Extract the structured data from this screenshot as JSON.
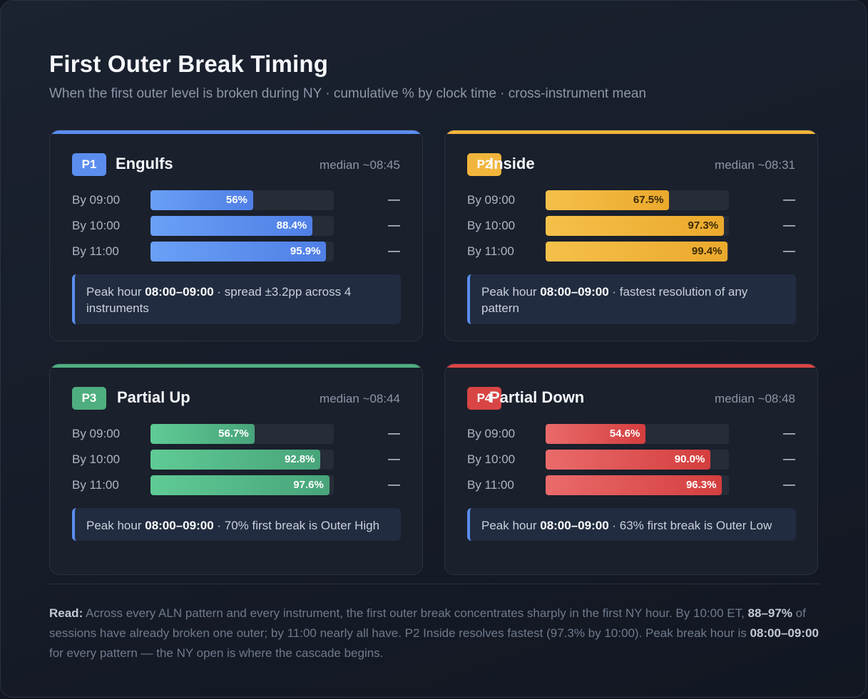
{
  "header": {
    "title": "First Outer Break Timing",
    "subtitle": "When the first outer level is broken during NY · cumulative % by clock time · cross-instrument mean"
  },
  "chart_data": [
    {
      "type": "bar",
      "badge": "P1",
      "title": "Engulfs",
      "median": "median ~08:45",
      "color": "#5b8def",
      "categories": [
        "By 09:00",
        "By 10:00",
        "By 11:00"
      ],
      "values": [
        56,
        88.4,
        95.9
      ],
      "value_labels": [
        "56%",
        "88.4%",
        "95.9%"
      ],
      "trend": [
        "—",
        "—",
        "—"
      ],
      "ylim": [
        0,
        100
      ],
      "note": {
        "pre": "Peak hour ",
        "bold": "08:00–09:00",
        "post": " · spread ±3.2pp across 4 instruments"
      }
    },
    {
      "type": "bar",
      "badge": "P2",
      "title": "Inside",
      "median": "median ~08:31",
      "color": "#f2b53c",
      "categories": [
        "By 09:00",
        "By 10:00",
        "By 11:00"
      ],
      "values": [
        67.5,
        97.3,
        99.4
      ],
      "value_labels": [
        "67.5%",
        "97.3%",
        "99.4%"
      ],
      "trend": [
        "—",
        "—",
        "—"
      ],
      "ylim": [
        0,
        100
      ],
      "note": {
        "pre": "Peak hour ",
        "bold": "08:00–09:00",
        "post": " · fastest resolution of any pattern"
      }
    },
    {
      "type": "bar",
      "badge": "P3",
      "title": "Partial Up",
      "median": "median ~08:44",
      "color": "#4fae7f",
      "categories": [
        "By 09:00",
        "By 10:00",
        "By 11:00"
      ],
      "values": [
        56.7,
        92.8,
        97.6
      ],
      "value_labels": [
        "56.7%",
        "92.8%",
        "97.6%"
      ],
      "trend": [
        "—",
        "—",
        "—"
      ],
      "ylim": [
        0,
        100
      ],
      "note": {
        "pre": "Peak hour ",
        "bold": "08:00–09:00",
        "post": " · 70% first break is Outer High"
      }
    },
    {
      "type": "bar",
      "badge": "P4",
      "title": "Partial Down",
      "median": "median ~08:48",
      "color": "#d94545",
      "categories": [
        "By 09:00",
        "By 10:00",
        "By 11:00"
      ],
      "values": [
        54.6,
        90.0,
        96.3
      ],
      "value_labels": [
        "54.6%",
        "90.0%",
        "96.3%"
      ],
      "trend": [
        "—",
        "—",
        "—"
      ],
      "ylim": [
        0,
        100
      ],
      "note": {
        "pre": "Peak hour ",
        "bold": "08:00–09:00",
        "post": " · 63% first break is Outer Low"
      }
    }
  ],
  "footer": {
    "read_label": "Read:",
    "text_1": " Across every ALN pattern and every instrument, the first outer break concentrates sharply in the first NY hour. By 10:00 ET, ",
    "bold_1": "88–97%",
    "text_2": " of sessions have already broken one outer; by 11:00 nearly all have. P2 Inside resolves fastest (97.3% by 10:00). Peak break hour is ",
    "bold_2": "08:00–09:00",
    "text_3": " for every pattern — the NY open is where the cascade begins."
  }
}
